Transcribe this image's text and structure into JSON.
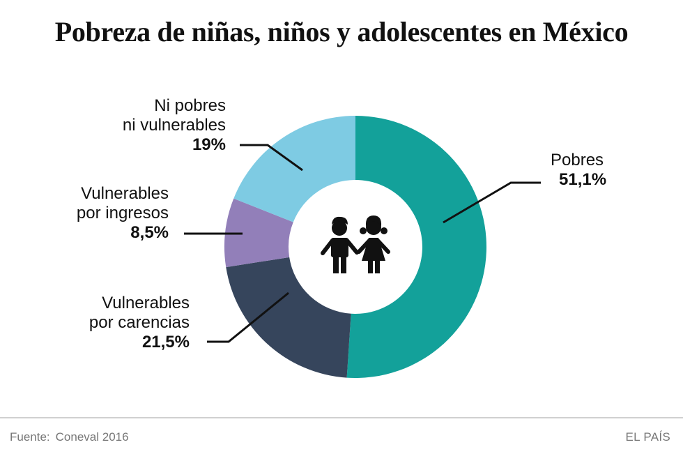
{
  "title": "Pobreza de niñas, niños y adolescentes en México",
  "chart_data": {
    "type": "pie",
    "donut": true,
    "start_angle_deg": 0,
    "direction": "clockwise",
    "segments": [
      {
        "name_lines": [
          "Pobres"
        ],
        "value": 51.1,
        "value_label": "51,1%",
        "color": "#13a19a"
      },
      {
        "name_lines": [
          "Vulnerables",
          "por carencias"
        ],
        "value": 21.5,
        "value_label": "21,5%",
        "color": "#36455c"
      },
      {
        "name_lines": [
          "Vulnerables",
          "por ingresos"
        ],
        "value": 8.5,
        "value_label": "8,5%",
        "color": "#927fb9"
      },
      {
        "name_lines": [
          "Ni pobres",
          "ni vulnerables"
        ],
        "value": 19,
        "value_label": "19%",
        "color": "#7ecbe3"
      }
    ],
    "center_icon": "children-icon"
  },
  "footer": {
    "source_label": "Fuente:",
    "source_value": "Coneval 2016",
    "brand": "EL PAÍS"
  },
  "colors": {
    "background": "#ffffff",
    "text": "#111111",
    "footer_text": "#777777",
    "divider": "#d0d0d0"
  }
}
